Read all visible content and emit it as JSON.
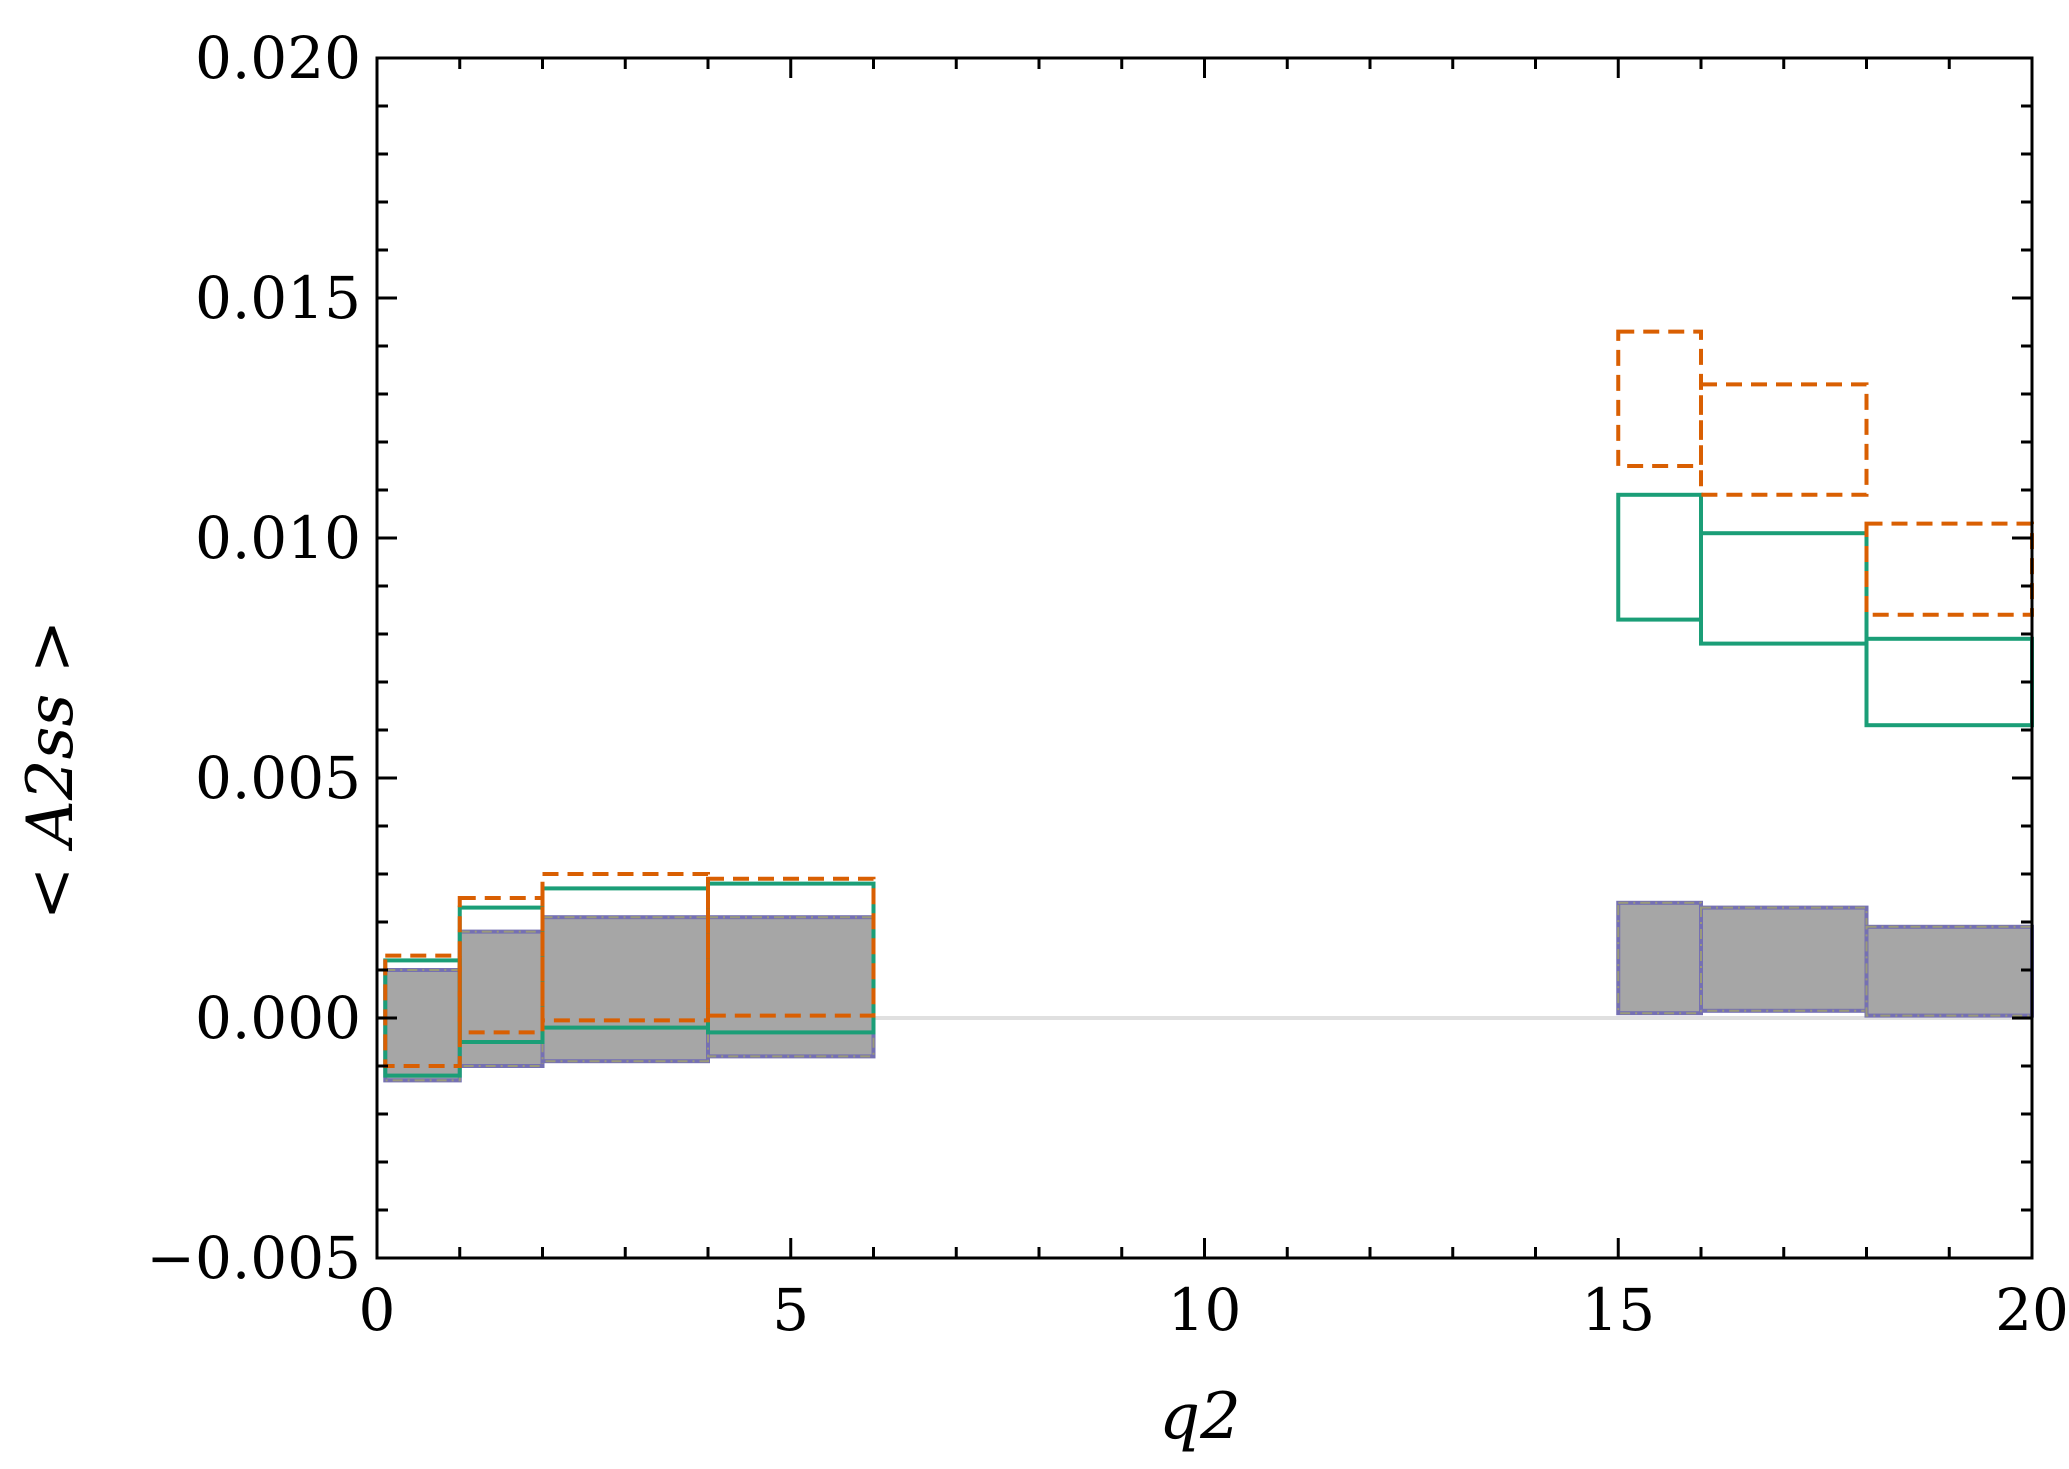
{
  "chart_data": {
    "type": "bar",
    "xlabel": "q2",
    "ylabel": "< A2ss >",
    "xlim": [
      0,
      20
    ],
    "ylim": [
      -0.005,
      0.02
    ],
    "x_major_ticks": [
      0,
      5,
      10,
      15,
      20
    ],
    "x_tick_labels": [
      "0",
      "5",
      "10",
      "15",
      "20"
    ],
    "y_major_ticks": [
      -0.005,
      0.0,
      0.005,
      0.01,
      0.015,
      0.02
    ],
    "y_tick_labels": [
      "−0.005",
      "0.000",
      "0.005",
      "0.010",
      "0.015",
      "0.020"
    ],
    "grid": false,
    "zero_line": true,
    "series": [
      {
        "style": "dashed",
        "color": "#d95f02",
        "bins": [
          {
            "x0": 0.1,
            "x1": 1,
            "low": -0.001,
            "high": 0.0013
          },
          {
            "x0": 1,
            "x1": 2,
            "low": -0.0003,
            "high": 0.0025
          },
          {
            "x0": 2,
            "x1": 4,
            "low": -5e-05,
            "high": 0.003
          },
          {
            "x0": 4,
            "x1": 6,
            "low": 5e-05,
            "high": 0.0029
          },
          {
            "x0": 15,
            "x1": 16,
            "low": 0.0115,
            "high": 0.0143
          },
          {
            "x0": 16,
            "x1": 18,
            "low": 0.0109,
            "high": 0.0132
          },
          {
            "x0": 18,
            "x1": 20,
            "low": 0.0084,
            "high": 0.0103
          }
        ]
      },
      {
        "style": "solid",
        "color": "#1b9e77",
        "bins": [
          {
            "x0": 0.1,
            "x1": 1,
            "low": -0.0012,
            "high": 0.0012
          },
          {
            "x0": 1,
            "x1": 2,
            "low": -0.0005,
            "high": 0.0023
          },
          {
            "x0": 2,
            "x1": 4,
            "low": -0.0002,
            "high": 0.0027
          },
          {
            "x0": 4,
            "x1": 6,
            "low": -0.0003,
            "high": 0.0028
          },
          {
            "x0": 15,
            "x1": 16,
            "low": 0.0083,
            "high": 0.0109
          },
          {
            "x0": 16,
            "x1": 18,
            "low": 0.0078,
            "high": 0.0101
          },
          {
            "x0": 18,
            "x1": 20,
            "low": 0.0061,
            "high": 0.0079
          }
        ]
      },
      {
        "style": "filled",
        "color": "#7570b3",
        "fill": "#a6a6a6",
        "bins": [
          {
            "x0": 0.1,
            "x1": 1,
            "low": -0.0013,
            "high": 0.001
          },
          {
            "x0": 1,
            "x1": 2,
            "low": -0.001,
            "high": 0.0018
          },
          {
            "x0": 2,
            "x1": 4,
            "low": -0.0009,
            "high": 0.0021
          },
          {
            "x0": 4,
            "x1": 6,
            "low": -0.0008,
            "high": 0.0021
          },
          {
            "x0": 15,
            "x1": 16,
            "low": 0.0001,
            "high": 0.0024
          },
          {
            "x0": 16,
            "x1": 18,
            "low": 0.00015,
            "high": 0.0023
          },
          {
            "x0": 18,
            "x1": 20,
            "low": 5e-05,
            "high": 0.0019
          }
        ]
      }
    ]
  }
}
